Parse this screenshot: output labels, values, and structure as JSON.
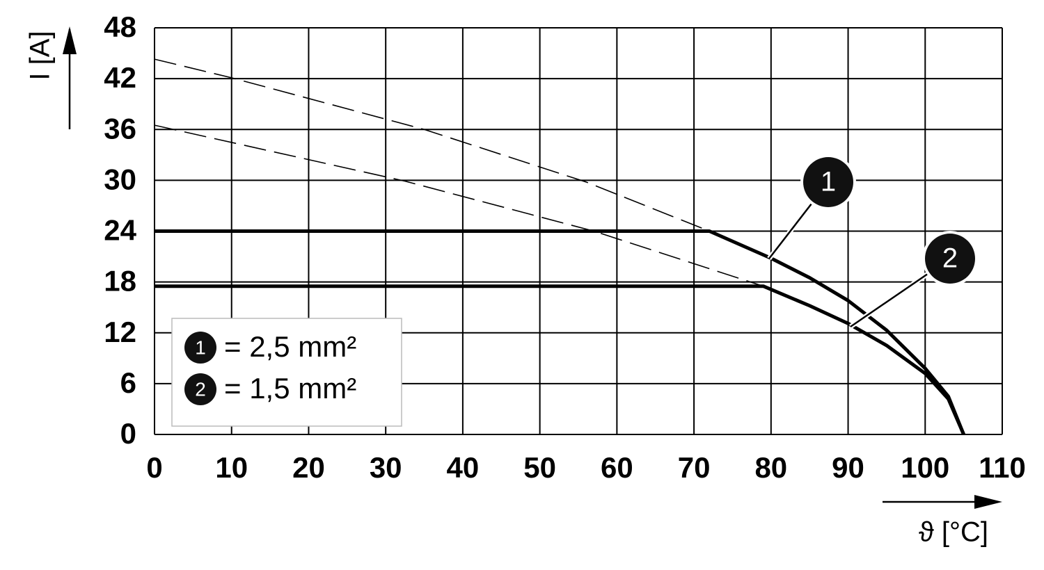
{
  "chart_data": {
    "type": "line",
    "xlabel": "ϑ [°C]",
    "ylabel": "I [A]",
    "xlim": [
      0,
      110
    ],
    "xticks": [
      0,
      10,
      20,
      30,
      40,
      50,
      60,
      70,
      80,
      90,
      100,
      110
    ],
    "ylim": [
      0,
      48
    ],
    "yticks": [
      0,
      6,
      12,
      18,
      24,
      30,
      36,
      42,
      48
    ],
    "grid": true,
    "color": "#000000",
    "series": [
      {
        "name": "= 2,5 mm²",
        "marker": "1",
        "style": "solid",
        "x": [
          0,
          72,
          80,
          85,
          90,
          95,
          100,
          103,
          105
        ],
        "values": [
          24,
          24,
          20.8,
          18.5,
          15.8,
          12.3,
          7.8,
          4.5,
          0
        ]
      },
      {
        "name": "= 1,5 mm²",
        "marker": "2",
        "style": "solid",
        "x": [
          0,
          79,
          85,
          90,
          95,
          100,
          103,
          105
        ],
        "values": [
          17.5,
          17.5,
          15.2,
          13.1,
          10.5,
          7.2,
          4.2,
          0
        ]
      },
      {
        "style": "dashed",
        "x": [
          0,
          10,
          35,
          56,
          72
        ],
        "values": [
          44.3,
          42.1,
          36,
          29.8,
          24
        ]
      },
      {
        "style": "dashed",
        "x": [
          0,
          32.5,
          57,
          79
        ],
        "values": [
          36.5,
          29.9,
          24,
          17.5
        ]
      }
    ]
  }
}
